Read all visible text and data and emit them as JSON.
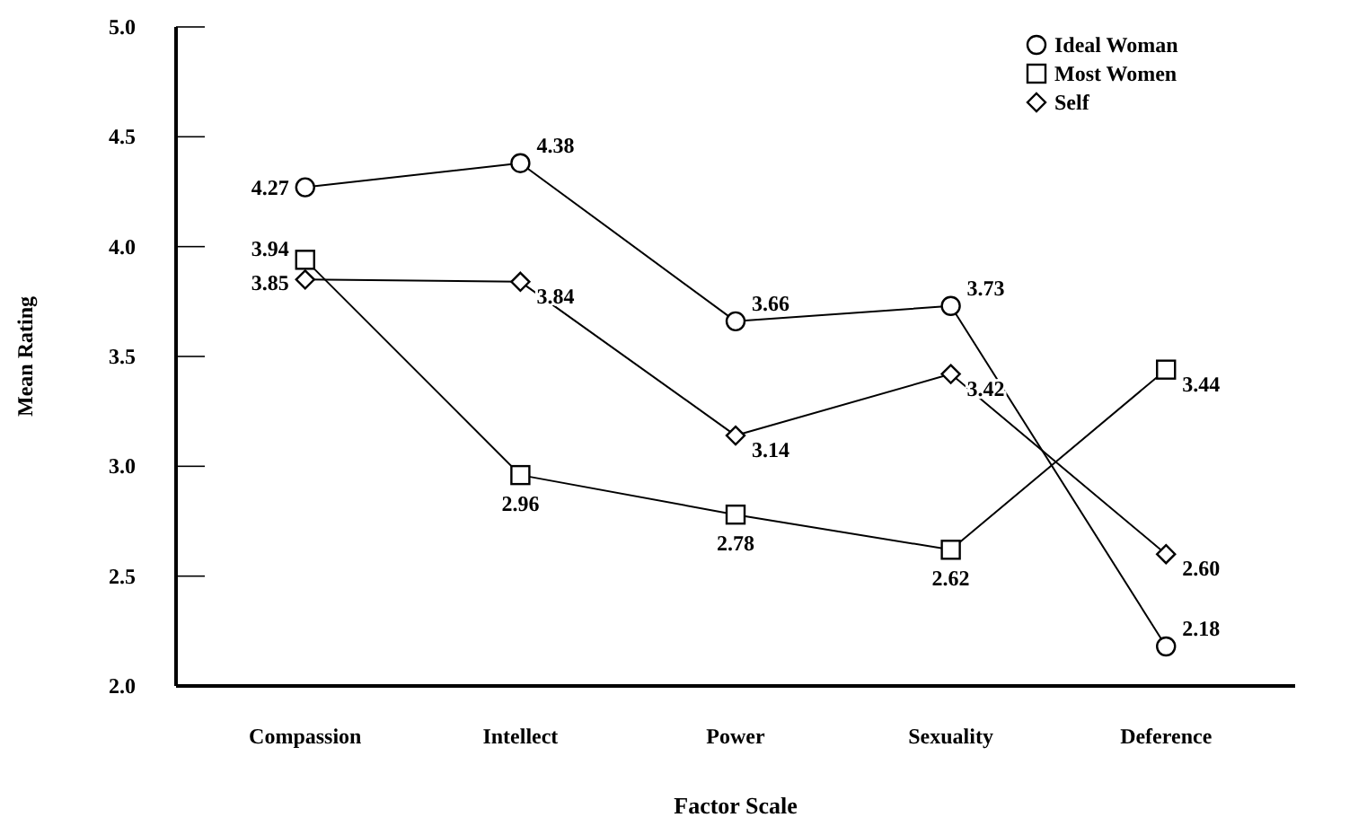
{
  "chart_data": {
    "type": "line",
    "xlabel": "Factor Scale",
    "ylabel": "Mean Rating",
    "categories": [
      "Compassion",
      "Intellect",
      "Power",
      "Sexuality",
      "Deference"
    ],
    "series": [
      {
        "name": "Ideal Woman",
        "color": "#000000",
        "marker": "circle",
        "values": [
          4.27,
          4.38,
          3.66,
          3.73,
          2.18
        ],
        "value_labels": [
          "4.27",
          "4.38",
          "3.66",
          "3.73",
          "2.18"
        ]
      },
      {
        "name": "Most Women",
        "color": "#000000",
        "marker": "square",
        "values": [
          3.94,
          2.96,
          2.78,
          2.62,
          3.44
        ],
        "value_labels": [
          "3.94",
          "2.96",
          "2.78",
          "2.62",
          "3.44"
        ]
      },
      {
        "name": "Self",
        "color": "#000000",
        "marker": "diamond",
        "values": [
          3.85,
          3.84,
          3.14,
          3.42,
          2.6
        ],
        "value_labels": [
          "3.85",
          "3.84",
          "3.14",
          "3.42",
          "2.60"
        ]
      }
    ],
    "ylim": [
      2.0,
      5.0
    ],
    "yticks": [
      {
        "value": 2,
        "label": "2.0"
      },
      {
        "value": 2.5,
        "label": "2.5"
      },
      {
        "value": 3,
        "label": "3.0"
      },
      {
        "value": 3.5,
        "label": "3.5"
      },
      {
        "value": 4,
        "label": "4.0"
      },
      {
        "value": 4.5,
        "label": "4.5"
      },
      {
        "value": 5,
        "label": "5.0"
      }
    ],
    "legend": "top right",
    "grid": false,
    "line_style": "solid"
  }
}
